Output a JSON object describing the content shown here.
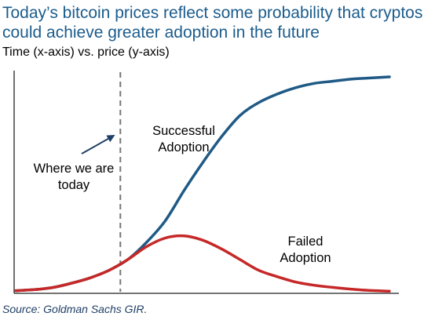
{
  "title": "Today’s bitcoin prices reflect some probability that cryptos could achieve greater adoption in the future",
  "subtitle": "Time (x-axis) vs. price (y-axis)",
  "source": "Source: Goldman Sachs GIR.",
  "colors": {
    "title": "#1b5c8c",
    "successful": "#1f5a86",
    "failed": "#c62828",
    "axis": "#222222",
    "marker": "#777777"
  },
  "chart_data": {
    "type": "line",
    "title": "Today’s bitcoin prices reflect some probability that cryptos could achieve greater adoption in the future",
    "subtitle": "Time (x-axis) vs. price (y-axis)",
    "xlabel": "",
    "ylabel": "",
    "xlim": [
      0,
      100
    ],
    "ylim": [
      0,
      100
    ],
    "grid": false,
    "ticks": "none",
    "today_marker_x": 28,
    "series": [
      {
        "name": "Successful Adoption",
        "x": [
          0,
          5,
          10,
          15,
          20,
          25,
          30,
          35,
          40,
          45,
          50,
          55,
          60,
          65,
          70,
          75,
          80,
          85,
          90,
          95,
          100
        ],
        "y": [
          0.5,
          1,
          2,
          4,
          6.5,
          10,
          15,
          23,
          33,
          47,
          60,
          72,
          82,
          88,
          92,
          95,
          97,
          98,
          99,
          99.5,
          100
        ]
      },
      {
        "name": "Failed Adoption",
        "x": [
          0,
          5,
          10,
          15,
          20,
          25,
          30,
          35,
          40,
          45,
          50,
          55,
          60,
          65,
          70,
          75,
          80,
          85,
          90,
          95,
          100
        ],
        "y": [
          0.5,
          1,
          2,
          4,
          6.5,
          10,
          15,
          21,
          25,
          26,
          24,
          20,
          15,
          10,
          7,
          4.5,
          3,
          2,
          1.2,
          0.6,
          0.3
        ]
      }
    ],
    "annotations": [
      {
        "text_lines": [
          "Where we are",
          "today"
        ],
        "arrow": true
      },
      {
        "text_lines": [
          "Successful",
          "Adoption"
        ]
      },
      {
        "text_lines": [
          "Failed",
          "Adoption"
        ]
      }
    ]
  }
}
